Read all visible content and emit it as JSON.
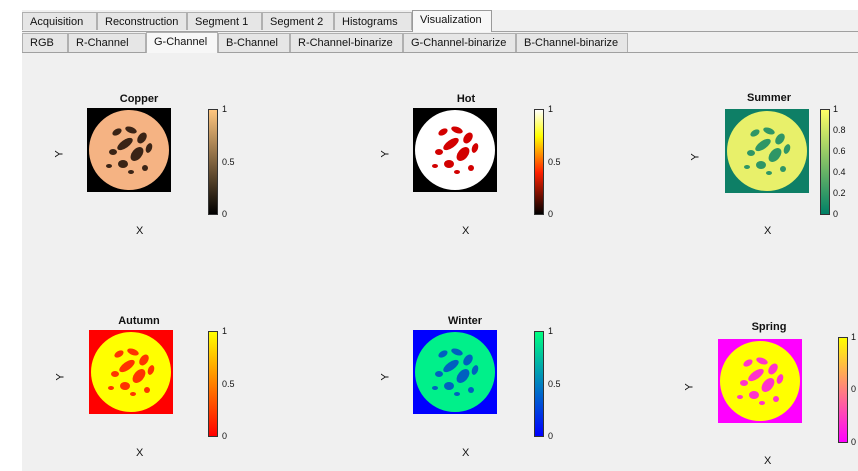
{
  "tabs": [
    {
      "label": "Acquisition",
      "active": false
    },
    {
      "label": "Reconstruction",
      "active": false
    },
    {
      "label": "Segment 1",
      "active": false
    },
    {
      "label": "Segment 2",
      "active": false
    },
    {
      "label": "Histograms",
      "active": false
    },
    {
      "label": "Visualization",
      "active": true
    }
  ],
  "subtabs": [
    {
      "label": "RGB",
      "active": false
    },
    {
      "label": "R-Channel",
      "active": false
    },
    {
      "label": "G-Channel",
      "active": true
    },
    {
      "label": "B-Channel",
      "active": false
    },
    {
      "label": "R-Channel-binarize",
      "active": false
    },
    {
      "label": "G-Channel-binarize",
      "active": false
    },
    {
      "label": "B-Channel-binarize",
      "active": false
    }
  ],
  "plots": [
    {
      "title": "Copper",
      "xlabel": "X",
      "ylabel": "Y",
      "bg": "#000000",
      "disc": "#f5b383",
      "spot": "#3a2416",
      "cbar_top": "#ffc67f",
      "cbar_bottom": "#000000",
      "ticks": [
        "1",
        "0.5",
        "0"
      ]
    },
    {
      "title": "Hot",
      "xlabel": "X",
      "ylabel": "Y",
      "bg": "#000000",
      "disc": "#ffffff",
      "spot": "#d20000",
      "cbar_top": "#ffffff",
      "cbar_bottom": "#000000",
      "cbar_mid": "#ff2000",
      "ticks": [
        "1",
        "0.5",
        "0"
      ]
    },
    {
      "title": "Summer",
      "xlabel": "X",
      "ylabel": "Y",
      "bg": "#0e7f66",
      "disc": "#e8f06a",
      "spot": "#2e9666",
      "cbar_top": "#ffff66",
      "cbar_bottom": "#008066",
      "ticks": [
        "1",
        "0.8",
        "0.6",
        "0.4",
        "0.2",
        "0"
      ]
    },
    {
      "title": "Autumn",
      "xlabel": "X",
      "ylabel": "Y",
      "bg": "#ff0000",
      "disc": "#ffff00",
      "spot": "#ff3300",
      "cbar_top": "#ffff00",
      "cbar_bottom": "#ff0000",
      "ticks": [
        "1",
        "0.5",
        "0"
      ]
    },
    {
      "title": "Winter",
      "xlabel": "X",
      "ylabel": "Y",
      "bg": "#0000ff",
      "disc": "#00f08a",
      "spot": "#0060c0",
      "cbar_top": "#00ff80",
      "cbar_bottom": "#0000ff",
      "ticks": [
        "1",
        "0.5",
        "0"
      ]
    },
    {
      "title": "Spring",
      "xlabel": "X",
      "ylabel": "Y",
      "bg": "#ff00ff",
      "disc": "#ffff00",
      "spot": "#ff33cc",
      "cbar_top": "#ffff00",
      "cbar_bottom": "#ff00ff",
      "ticks": [
        "1",
        "0",
        "0"
      ]
    }
  ]
}
